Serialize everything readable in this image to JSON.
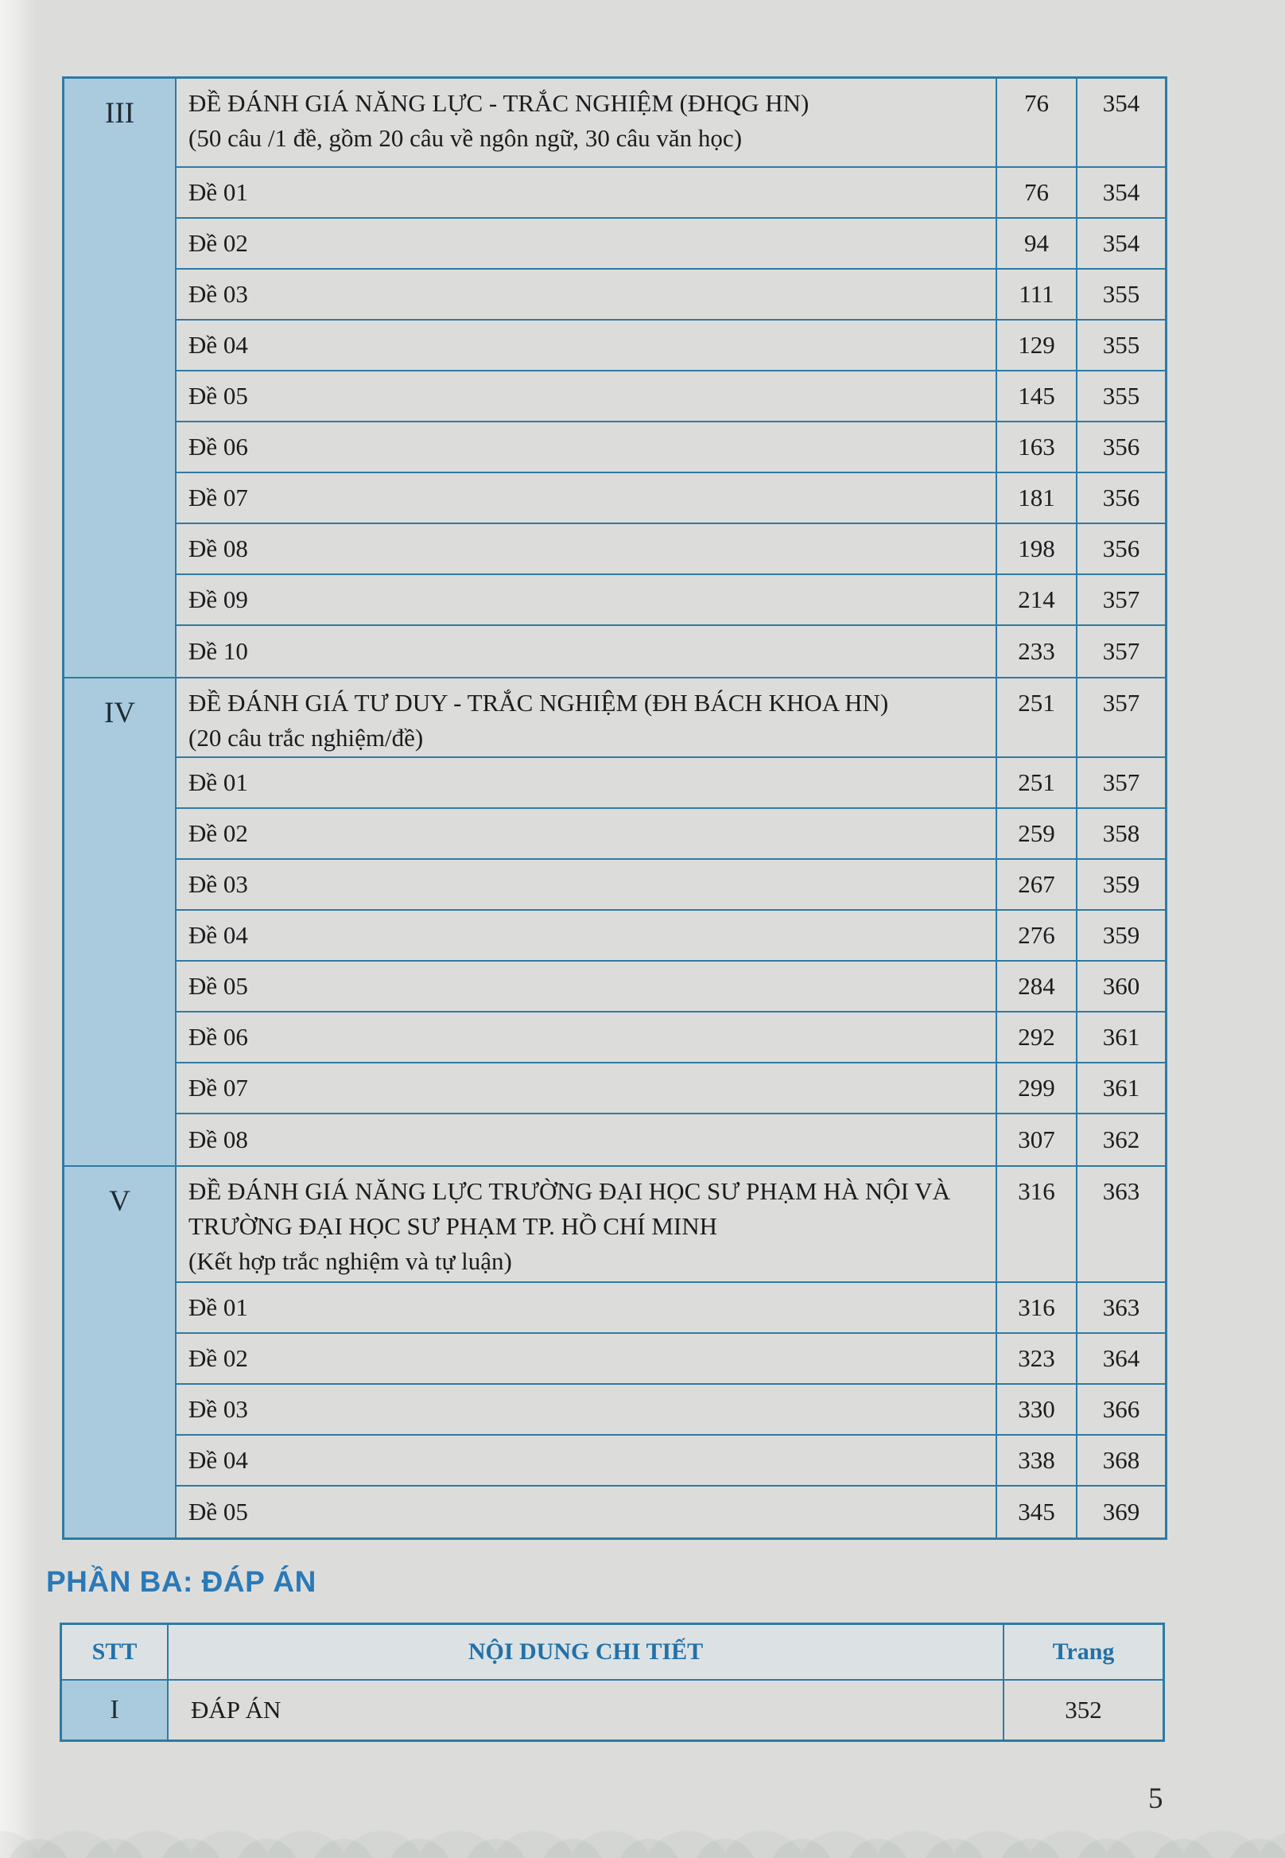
{
  "page": {
    "number": "5"
  },
  "toc": {
    "sections": [
      {
        "numeral": "III",
        "title": "ĐỀ ĐÁNH GIÁ NĂNG LỰC - TRẮC NGHIỆM (ĐHQG HN)",
        "subtitle": "(50 câu /1 đề, gồm 20 câu về ngôn ngữ, 30 câu văn học)",
        "page_start": "76",
        "page_answer": "354",
        "items": [
          {
            "label": "Đề 01",
            "page_start": "76",
            "page_answer": "354"
          },
          {
            "label": "Đề 02",
            "page_start": "94",
            "page_answer": "354"
          },
          {
            "label": "Đề 03",
            "page_start": "111",
            "page_answer": "355"
          },
          {
            "label": "Đề 04",
            "page_start": "129",
            "page_answer": "355"
          },
          {
            "label": "Đề 05",
            "page_start": "145",
            "page_answer": "355"
          },
          {
            "label": "Đề 06",
            "page_start": "163",
            "page_answer": "356"
          },
          {
            "label": "Đề 07",
            "page_start": "181",
            "page_answer": "356"
          },
          {
            "label": "Đề 08",
            "page_start": "198",
            "page_answer": "356"
          },
          {
            "label": "Đề 09",
            "page_start": "214",
            "page_answer": "357"
          },
          {
            "label": "Đề 10",
            "page_start": "233",
            "page_answer": "357"
          }
        ]
      },
      {
        "numeral": "IV",
        "title": "ĐỀ ĐÁNH GIÁ TƯ DUY -  TRẮC NGHIỆM (ĐH BÁCH KHOA HN)",
        "subtitle": "(20 câu trắc nghiệm/đề)",
        "page_start": "251",
        "page_answer": "357",
        "items": [
          {
            "label": "Đề 01",
            "page_start": "251",
            "page_answer": "357"
          },
          {
            "label": "Đề 02",
            "page_start": "259",
            "page_answer": "358"
          },
          {
            "label": "Đề 03",
            "page_start": "267",
            "page_answer": "359"
          },
          {
            "label": "Đề 04",
            "page_start": "276",
            "page_answer": "359"
          },
          {
            "label": "Đề 05",
            "page_start": "284",
            "page_answer": "360"
          },
          {
            "label": "Đề 06",
            "page_start": "292",
            "page_answer": "361"
          },
          {
            "label": "Đề 07",
            "page_start": "299",
            "page_answer": "361"
          },
          {
            "label": "Đề 08",
            "page_start": "307",
            "page_answer": "362"
          }
        ]
      },
      {
        "numeral": "V",
        "title": "ĐỀ ĐÁNH GIÁ NĂNG LỰC TRƯỜNG ĐẠI HỌC SƯ PHẠM HÀ NỘI VÀ TRƯỜNG ĐẠI HỌC SƯ PHẠM TP. HỒ CHÍ MINH",
        "subtitle": "(Kết hợp trắc nghiệm và tự luận)",
        "page_start": "316",
        "page_answer": "363",
        "items": [
          {
            "label": "Đề 01",
            "page_start": "316",
            "page_answer": "363"
          },
          {
            "label": "Đề 02",
            "page_start": "323",
            "page_answer": "364"
          },
          {
            "label": "Đề 03",
            "page_start": "330",
            "page_answer": "366"
          },
          {
            "label": "Đề 04",
            "page_start": "338",
            "page_answer": "368"
          },
          {
            "label": "Đề 05",
            "page_start": "345",
            "page_answer": "369"
          }
        ]
      }
    ]
  },
  "part_three": {
    "heading": "PHẦN BA: ĐÁP ÁN",
    "answers_table": {
      "col_stt": "STT",
      "col_content": "NỘI DUNG CHI TIẾT",
      "col_page": "Trang",
      "rows": [
        {
          "numeral": "I",
          "label": "ĐÁP ÁN",
          "page": "352"
        }
      ]
    }
  },
  "colors": {
    "border": "#2e7aa4",
    "band_blue": "#aacbdd",
    "header_text_blue": "#2271a8",
    "heading_blue": "#2a79b8",
    "paper": "#dcddda"
  }
}
